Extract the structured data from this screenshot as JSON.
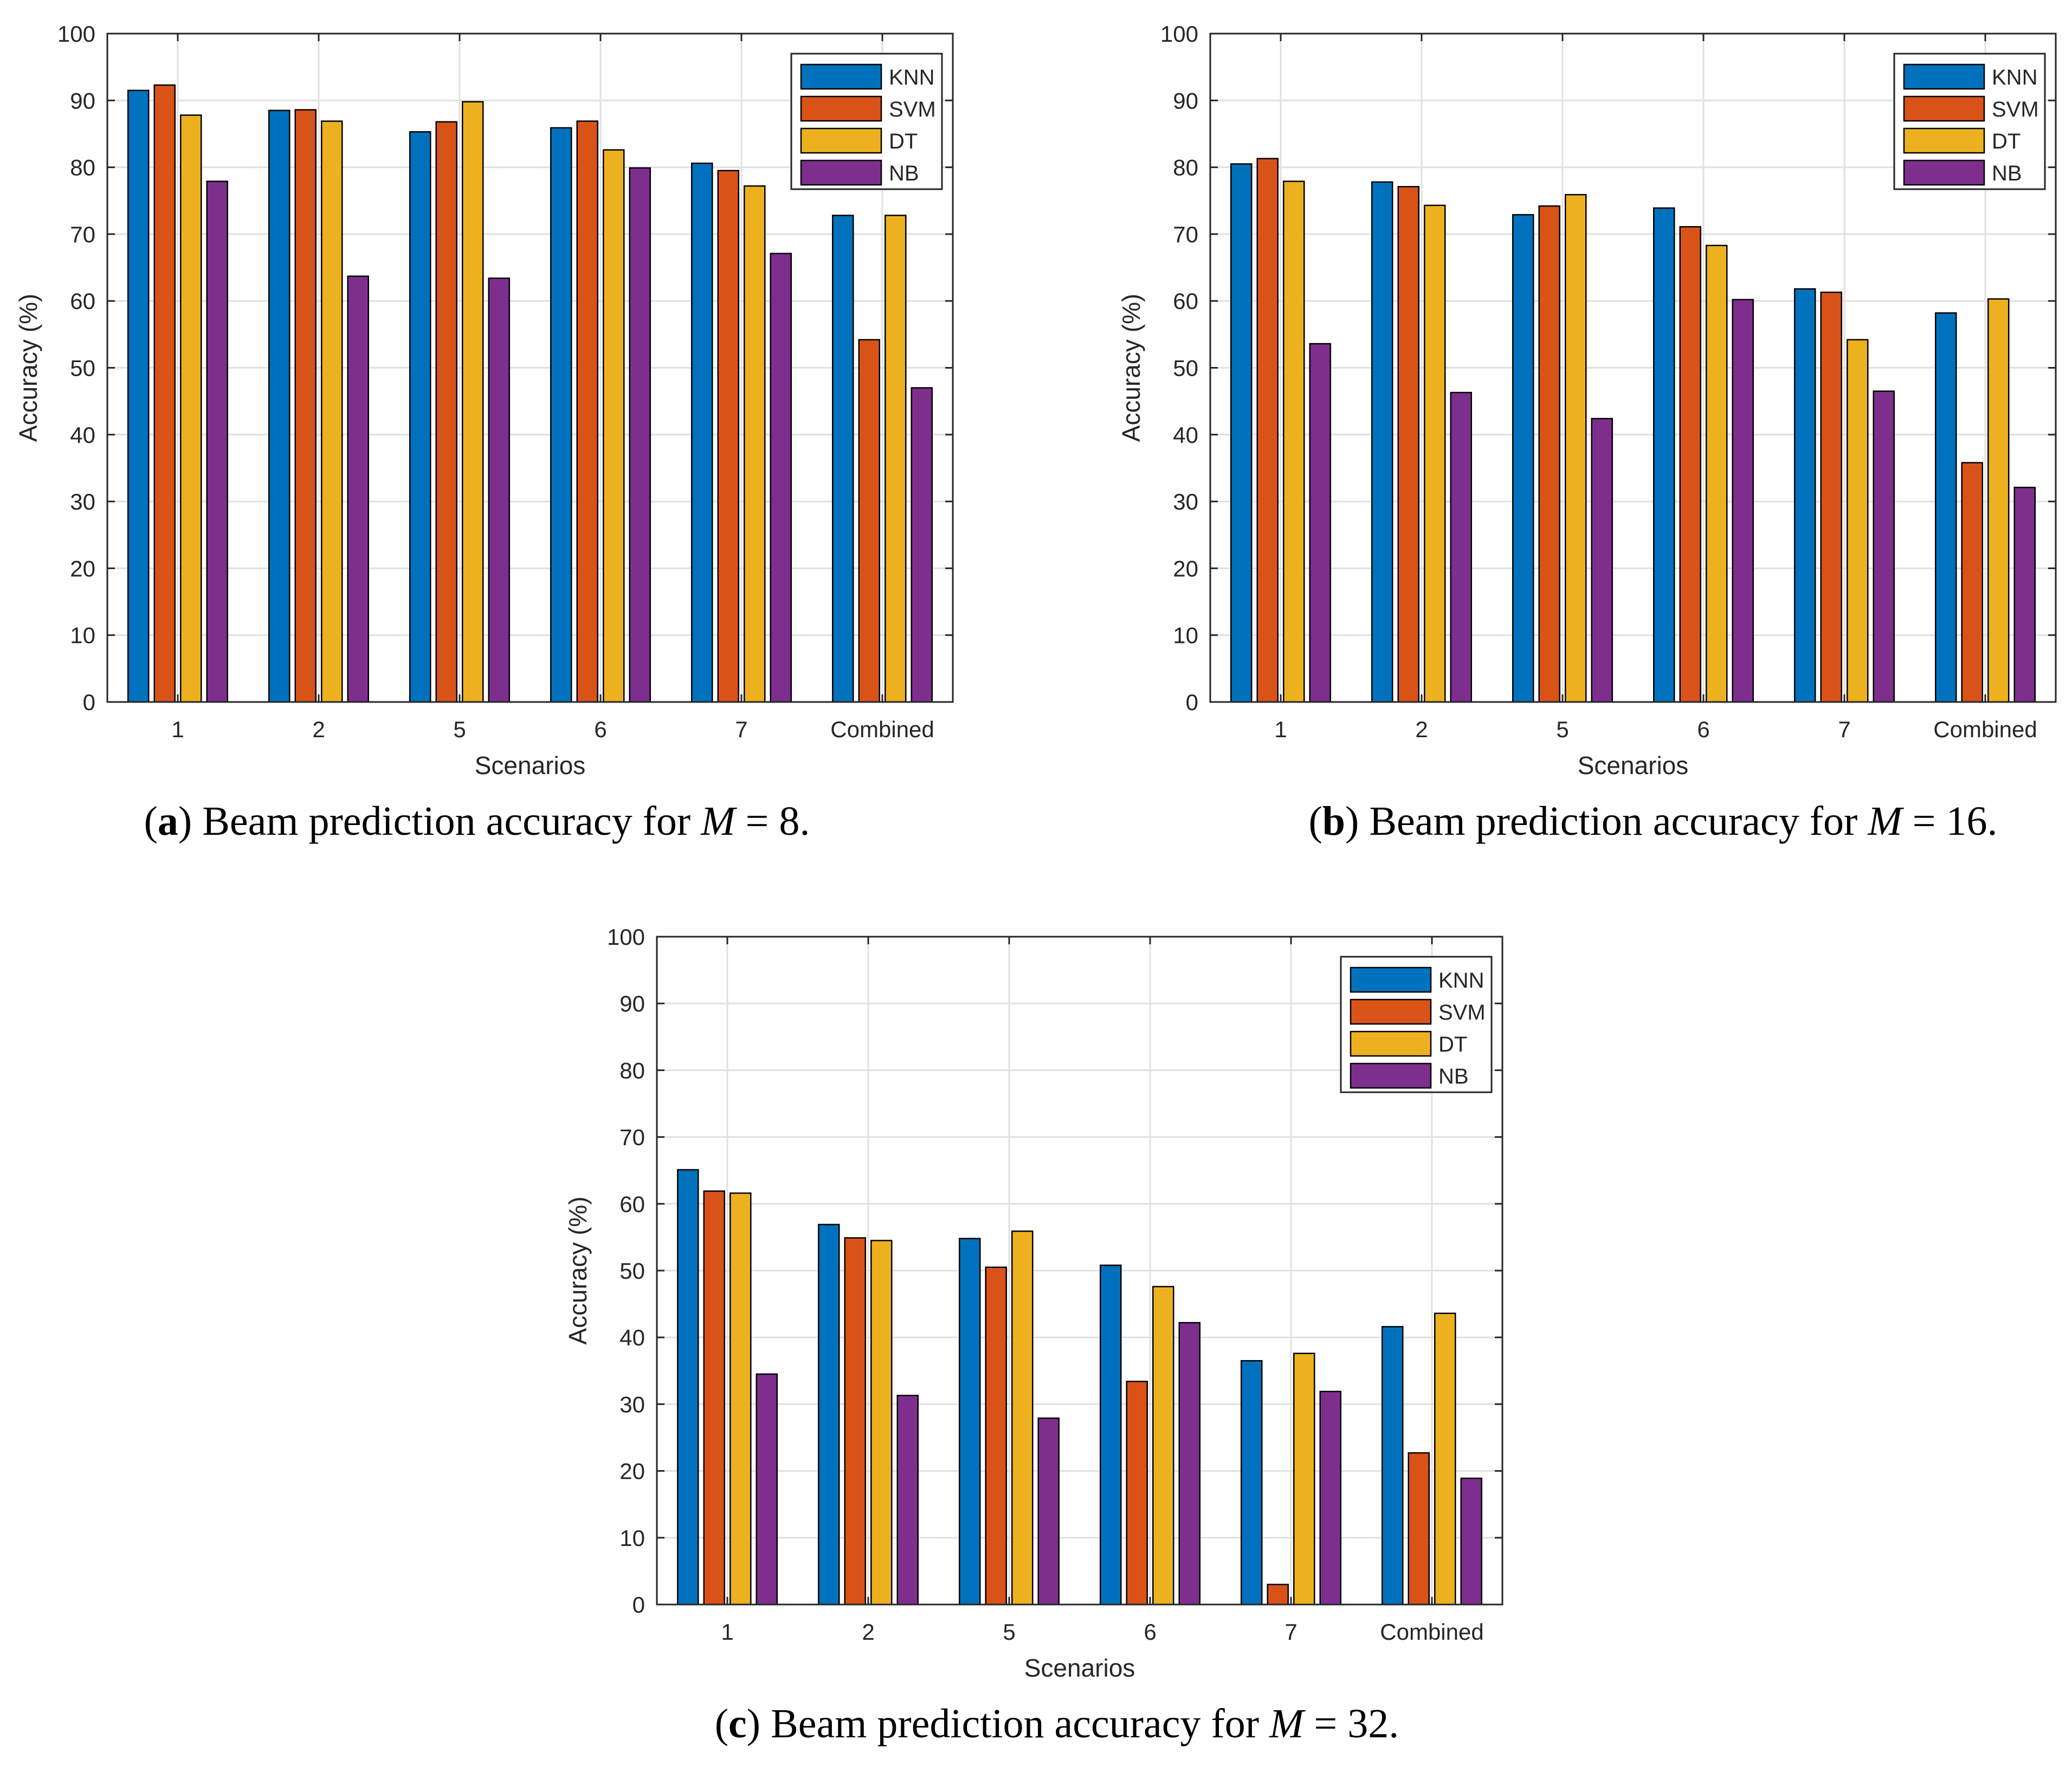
{
  "chart_data": [
    {
      "type": "bar",
      "caption_label": "a",
      "caption_text": "Beam prediction accuracy for M = 8.",
      "xlabel": "Scenarios",
      "ylabel": "Accuracy (%)",
      "ylim": [
        0,
        100
      ],
      "yticks": [
        0,
        10,
        20,
        30,
        40,
        50,
        60,
        70,
        80,
        90,
        100
      ],
      "grid": true,
      "legend_position": "top-right",
      "categories": [
        "1",
        "2",
        "5",
        "6",
        "7",
        "Combined"
      ],
      "series": [
        {
          "name": "KNN",
          "values": [
            91.5,
            88.5,
            85.3,
            85.9,
            80.6,
            72.8
          ]
        },
        {
          "name": "SVM",
          "values": [
            92.3,
            88.6,
            86.8,
            86.9,
            79.5,
            54.2
          ]
        },
        {
          "name": "DT",
          "values": [
            87.8,
            86.9,
            89.8,
            82.6,
            77.2,
            72.8
          ]
        },
        {
          "name": "NB",
          "values": [
            77.9,
            63.7,
            63.4,
            79.9,
            67.1,
            47.0
          ]
        }
      ]
    },
    {
      "type": "bar",
      "caption_label": "b",
      "caption_text": "Beam prediction accuracy for M = 16.",
      "xlabel": "Scenarios",
      "ylabel": "Accuracy (%)",
      "ylim": [
        0,
        100
      ],
      "yticks": [
        0,
        10,
        20,
        30,
        40,
        50,
        60,
        70,
        80,
        90,
        100
      ],
      "grid": true,
      "legend_position": "top-right",
      "categories": [
        "1",
        "2",
        "5",
        "6",
        "7",
        "Combined"
      ],
      "series": [
        {
          "name": "KNN",
          "values": [
            80.5,
            77.8,
            72.9,
            73.9,
            61.8,
            58.2
          ]
        },
        {
          "name": "SVM",
          "values": [
            81.3,
            77.1,
            74.2,
            71.1,
            61.3,
            35.8
          ]
        },
        {
          "name": "DT",
          "values": [
            77.9,
            74.3,
            75.9,
            68.3,
            54.2,
            60.3
          ]
        },
        {
          "name": "NB",
          "values": [
            53.6,
            46.3,
            42.4,
            60.2,
            46.5,
            32.1
          ]
        }
      ]
    },
    {
      "type": "bar",
      "caption_label": "c",
      "caption_text": "Beam prediction accuracy for M = 32.",
      "xlabel": "Scenarios",
      "ylabel": "Accuracy (%)",
      "ylim": [
        0,
        100
      ],
      "yticks": [
        0,
        10,
        20,
        30,
        40,
        50,
        60,
        70,
        80,
        90,
        100
      ],
      "grid": true,
      "legend_position": "top-right",
      "categories": [
        "1",
        "2",
        "5",
        "6",
        "7",
        "Combined"
      ],
      "series": [
        {
          "name": "KNN",
          "values": [
            65.1,
            56.9,
            54.8,
            50.8,
            36.5,
            41.6
          ]
        },
        {
          "name": "SVM",
          "values": [
            61.9,
            54.9,
            50.5,
            33.4,
            3.0,
            22.7
          ]
        },
        {
          "name": "DT",
          "values": [
            61.6,
            54.5,
            55.9,
            47.6,
            37.6,
            43.6
          ]
        },
        {
          "name": "NB",
          "values": [
            34.5,
            31.3,
            27.9,
            42.2,
            31.9,
            18.9
          ]
        }
      ]
    }
  ],
  "colors": {
    "KNN": "#0072bd",
    "SVM": "#d95319",
    "DT": "#edb120",
    "NB": "#7e2f8e",
    "grid": "#e0e0e0",
    "axis": "#262626"
  }
}
